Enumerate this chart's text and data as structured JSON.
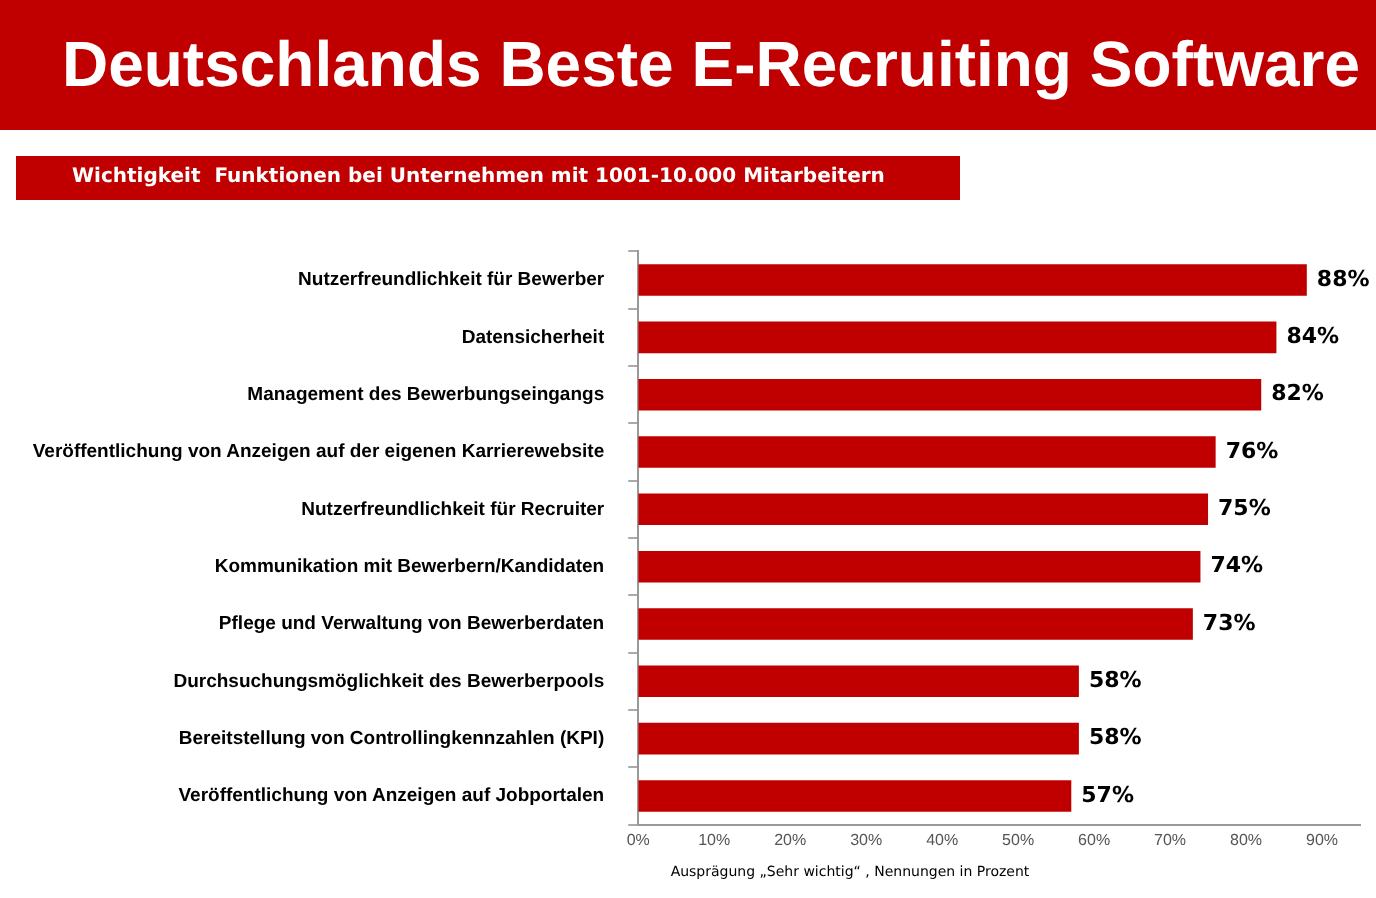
{
  "chart_data": {
    "type": "bar",
    "orientation": "horizontal",
    "title": "Deutschlands Beste E-Recruiting Software",
    "subtitle": "Wichtigkeit  Funktionen bei Unternehmen mit 1001-10.000 Mitarbeitern",
    "xlabel": "Ausprägung „Sehr wichtig“ , Nennungen in Prozent",
    "categories": [
      "Nutzerfreundlichkeit für Bewerber",
      "Datensicherheit",
      "Management des Bewerbungseingangs",
      "Veröffentlichung von Anzeigen auf der eigenen Karrierewebsite",
      "Nutzerfreundlichkeit für Recruiter",
      "Kommunikation mit Bewerbern/Kandidaten",
      "Pflege und Verwaltung von Bewerberdaten",
      "Durchsuchungsmöglichkeit des Bewerberpools",
      "Bereitstellung von Controllingkennzahlen (KPI)",
      "Veröffentlichung von Anzeigen auf Jobportalen"
    ],
    "values": [
      88,
      84,
      82,
      76,
      75,
      74,
      73,
      58,
      58,
      57
    ],
    "value_labels": [
      "88%",
      "84%",
      "82%",
      "76%",
      "75%",
      "74%",
      "73%",
      "58%",
      "58%",
      "57%"
    ],
    "color": "#c00000",
    "xlim": [
      0,
      95
    ],
    "xticks": [
      {
        "value": 0,
        "label": "0%"
      },
      {
        "value": 10,
        "label": "10%"
      },
      {
        "value": 20,
        "label": "20%"
      },
      {
        "value": 30,
        "label": "30%"
      },
      {
        "value": 40,
        "label": "40%"
      },
      {
        "value": 50,
        "label": "50%"
      },
      {
        "value": 60,
        "label": "60%"
      },
      {
        "value": 70,
        "label": "70%"
      },
      {
        "value": 80,
        "label": "80%"
      },
      {
        "value": 90,
        "label": "90%"
      }
    ],
    "grid": false,
    "legend": false
  }
}
